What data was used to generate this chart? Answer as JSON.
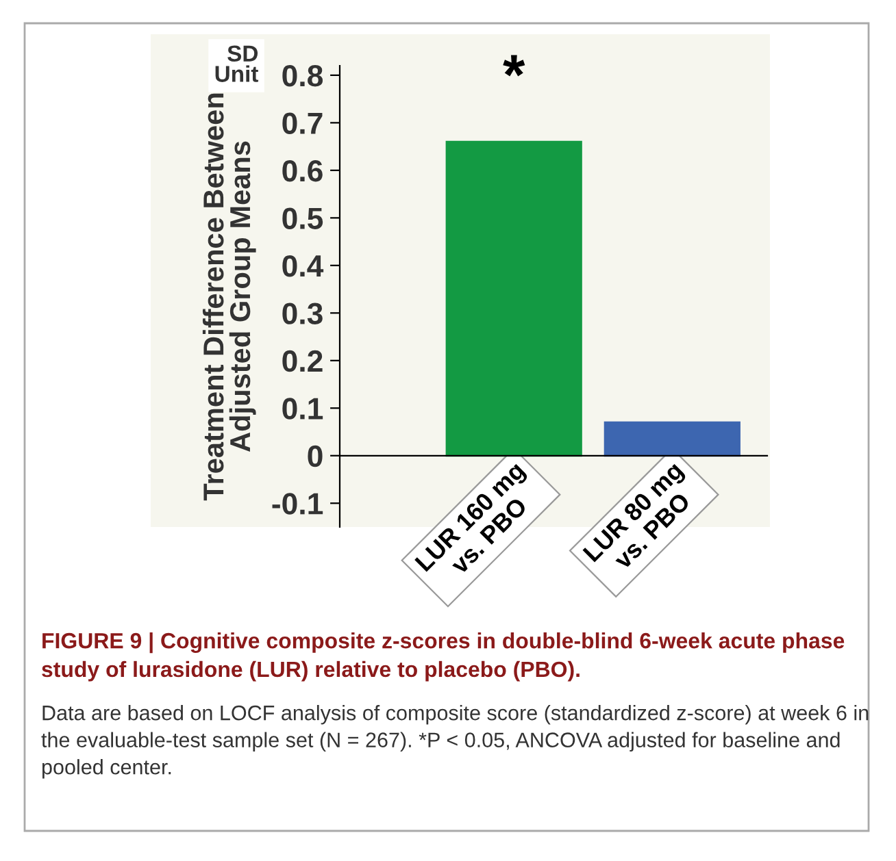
{
  "chart_data": {
    "type": "bar",
    "title": "FIGURE 9 | Cognitive composite z-scores in double-blind 6-week acute phase study of lurasidone (LUR) relative to placebo (PBO).",
    "ylabel": "Treatment Difference Between\nAdjusted Group Means",
    "categories": [
      "LUR 160 mg\nvs. PBO",
      "LUR 80 mg\nvs. PBO"
    ],
    "values": [
      0.66,
      0.07
    ],
    "colors": [
      "#139a43",
      "#3d66b0"
    ],
    "ylim": [
      -0.15,
      0.82
    ],
    "yticks": [
      -0.1,
      0,
      0.1,
      0.2,
      0.3,
      0.4,
      0.5,
      0.6,
      0.7,
      0.8
    ],
    "annotations": [
      "*",
      "SD\nUnit",
      "Data are based on LOCF analysis of composite score (standardized z-score) at week 6 in the evaluable-test sample set (N = 267). *P < 0.05, ANCOVA adjusted for baseline and pooled center."
    ]
  }
}
